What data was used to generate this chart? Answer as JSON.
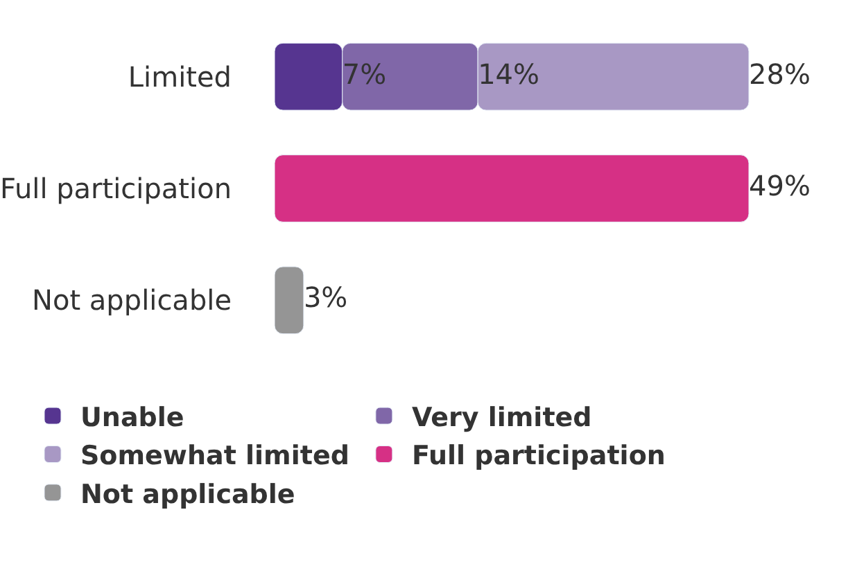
{
  "chart_data": {
    "type": "bar",
    "orientation": "horizontal",
    "stacked": true,
    "categories": [
      "Limited",
      "Full participation",
      "Not applicable"
    ],
    "series": [
      {
        "name": "Unable",
        "color": "#563590",
        "values": [
          7,
          null,
          null
        ],
        "value_labels": [
          "7%",
          null,
          null
        ]
      },
      {
        "name": "Very limited",
        "color": "#8067a8",
        "values": [
          14,
          null,
          null
        ],
        "value_labels": [
          "14%",
          null,
          null
        ]
      },
      {
        "name": "Somewhat limited",
        "color": "#a898c4",
        "values": [
          28,
          null,
          null
        ],
        "value_labels": [
          "28%",
          null,
          null
        ]
      },
      {
        "name": "Full participation",
        "color": "#d63085",
        "values": [
          null,
          49,
          null
        ],
        "value_labels": [
          null,
          "49%",
          null
        ]
      },
      {
        "name": "Not applicable",
        "color": "#959595",
        "values": [
          null,
          null,
          3
        ],
        "value_labels": [
          null,
          null,
          "3%"
        ]
      }
    ],
    "legend": "bottom",
    "tick_labels": "y"
  }
}
